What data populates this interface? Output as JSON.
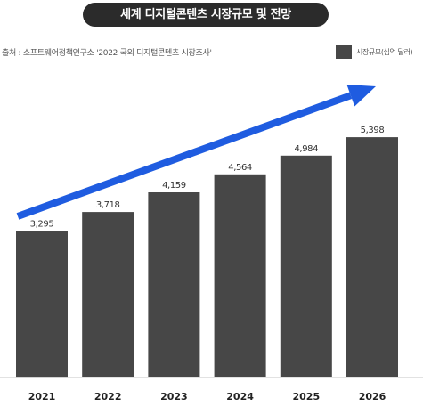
{
  "chart_data": {
    "type": "bar",
    "title": "세계 디지털콘텐츠 시장규모 및 전망",
    "source": "출처 : 소프트웨어정책연구소 '2022 국외 디지털콘텐츠 시장조사'",
    "categories": [
      "2021",
      "2022",
      "2023",
      "2024",
      "2025",
      "2026"
    ],
    "series": [
      {
        "name": "시장규모(십억 달러)",
        "values": [
          3295,
          3718,
          4159,
          4564,
          4984,
          5398
        ]
      }
    ],
    "value_labels": [
      "3,295",
      "3,718",
      "4,159",
      "4,564",
      "4,984",
      "5,398"
    ],
    "ylim": [
      0,
      5640
    ],
    "grid": false,
    "legend": "top-right",
    "bar_color": "#474747",
    "trend_arrow_color": "#1f5ce0"
  }
}
